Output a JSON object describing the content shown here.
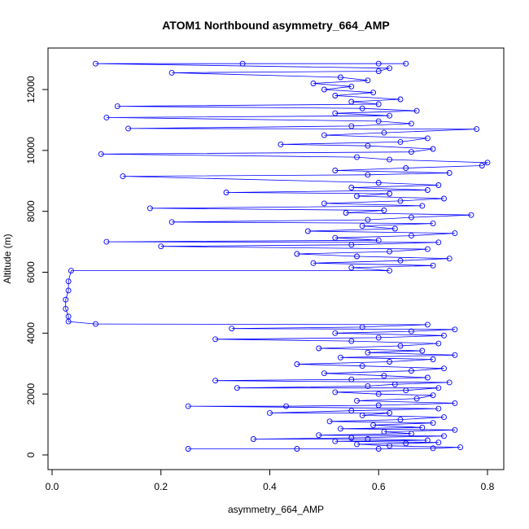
{
  "chart_data": {
    "type": "line",
    "title": "ATOM1 Northbound asymmetry_664_AMP",
    "xlabel": "asymmetry_664_AMP",
    "ylabel": "Altitude (m)",
    "xlim": [
      0.0,
      0.8
    ],
    "ylim": [
      0,
      12000
    ],
    "xticks": [
      0.0,
      0.2,
      0.4,
      0.6,
      0.8
    ],
    "xtick_labels": [
      "0.0",
      "0.2",
      "0.4",
      "0.6",
      "0.8"
    ],
    "yticks": [
      0,
      2000,
      4000,
      6000,
      8000,
      10000,
      12000
    ],
    "ytick_labels": [
      "0",
      "2000",
      "4000",
      "6000",
      "8000",
      "10000",
      "12000"
    ],
    "grid": false,
    "color": "#0000ff",
    "marker": "open-circle",
    "series": [
      {
        "name": "asymmetry_664_AMP",
        "points": [
          [
            0.25,
            200
          ],
          [
            0.45,
            200
          ],
          [
            0.6,
            200
          ],
          [
            0.7,
            220
          ],
          [
            0.75,
            250
          ],
          [
            0.62,
            300
          ],
          [
            0.56,
            350
          ],
          [
            0.65,
            380
          ],
          [
            0.71,
            410
          ],
          [
            0.52,
            450
          ],
          [
            0.69,
            480
          ],
          [
            0.58,
            520
          ],
          [
            0.37,
            520
          ],
          [
            0.55,
            560
          ],
          [
            0.72,
            620
          ],
          [
            0.49,
            650
          ],
          [
            0.66,
            700
          ],
          [
            0.61,
            760
          ],
          [
            0.74,
            820
          ],
          [
            0.53,
            860
          ],
          [
            0.68,
            900
          ],
          [
            0.59,
            980
          ],
          [
            0.7,
            1050
          ],
          [
            0.51,
            1100
          ],
          [
            0.64,
            1160
          ],
          [
            0.72,
            1240
          ],
          [
            0.57,
            1300
          ],
          [
            0.62,
            1380
          ],
          [
            0.4,
            1380
          ],
          [
            0.55,
            1450
          ],
          [
            0.71,
            1520
          ],
          [
            0.25,
            1600
          ],
          [
            0.43,
            1600
          ],
          [
            0.6,
            1630
          ],
          [
            0.74,
            1700
          ],
          [
            0.56,
            1780
          ],
          [
            0.67,
            1850
          ],
          [
            0.7,
            1960
          ],
          [
            0.6,
            2000
          ],
          [
            0.52,
            2060
          ],
          [
            0.65,
            2120
          ],
          [
            0.71,
            2200
          ],
          [
            0.34,
            2200
          ],
          [
            0.58,
            2260
          ],
          [
            0.63,
            2320
          ],
          [
            0.73,
            2380
          ],
          [
            0.3,
            2440
          ],
          [
            0.55,
            2480
          ],
          [
            0.69,
            2540
          ],
          [
            0.61,
            2600
          ],
          [
            0.5,
            2680
          ],
          [
            0.66,
            2760
          ],
          [
            0.72,
            2840
          ],
          [
            0.57,
            2920
          ],
          [
            0.45,
            2980
          ],
          [
            0.62,
            3060
          ],
          [
            0.7,
            3140
          ],
          [
            0.53,
            3200
          ],
          [
            0.74,
            3280
          ],
          [
            0.58,
            3360
          ],
          [
            0.68,
            3420
          ],
          [
            0.49,
            3500
          ],
          [
            0.64,
            3580
          ],
          [
            0.71,
            3660
          ],
          [
            0.55,
            3740
          ],
          [
            0.3,
            3800
          ],
          [
            0.6,
            3850
          ],
          [
            0.72,
            3920
          ],
          [
            0.52,
            4000
          ],
          [
            0.66,
            4060
          ],
          [
            0.74,
            4120
          ],
          [
            0.33,
            4150
          ],
          [
            0.57,
            4200
          ],
          [
            0.69,
            4280
          ],
          [
            0.08,
            4300
          ],
          [
            0.03,
            4380
          ],
          [
            0.03,
            4550
          ],
          [
            0.025,
            4800
          ],
          [
            0.025,
            5100
          ],
          [
            0.03,
            5400
          ],
          [
            0.03,
            5700
          ],
          [
            0.035,
            6050
          ],
          [
            0.62,
            6050
          ],
          [
            0.55,
            6150
          ],
          [
            0.7,
            6220
          ],
          [
            0.48,
            6300
          ],
          [
            0.64,
            6380
          ],
          [
            0.73,
            6450
          ],
          [
            0.56,
            6520
          ],
          [
            0.45,
            6600
          ],
          [
            0.62,
            6680
          ],
          [
            0.69,
            6760
          ],
          [
            0.2,
            6850
          ],
          [
            0.55,
            6900
          ],
          [
            0.71,
            6980
          ],
          [
            0.1,
            7000
          ],
          [
            0.6,
            7050
          ],
          [
            0.52,
            7130
          ],
          [
            0.66,
            7200
          ],
          [
            0.74,
            7280
          ],
          [
            0.47,
            7350
          ],
          [
            0.63,
            7430
          ],
          [
            0.57,
            7520
          ],
          [
            0.7,
            7600
          ],
          [
            0.22,
            7650
          ],
          [
            0.58,
            7720
          ],
          [
            0.66,
            7800
          ],
          [
            0.77,
            7880
          ],
          [
            0.54,
            7950
          ],
          [
            0.61,
            8030
          ],
          [
            0.18,
            8100
          ],
          [
            0.68,
            8180
          ],
          [
            0.5,
            8260
          ],
          [
            0.64,
            8340
          ],
          [
            0.72,
            8420
          ],
          [
            0.56,
            8500
          ],
          [
            0.62,
            8580
          ],
          [
            0.32,
            8620
          ],
          [
            0.69,
            8700
          ],
          [
            0.55,
            8780
          ],
          [
            0.71,
            8860
          ],
          [
            0.6,
            8940
          ],
          [
            0.13,
            9150
          ],
          [
            0.58,
            9200
          ],
          [
            0.73,
            9260
          ],
          [
            0.52,
            9340
          ],
          [
            0.65,
            9420
          ],
          [
            0.79,
            9500
          ],
          [
            0.8,
            9600
          ],
          [
            0.62,
            9700
          ],
          [
            0.56,
            9780
          ],
          [
            0.09,
            9880
          ],
          [
            0.66,
            9950
          ],
          [
            0.7,
            10050
          ],
          [
            0.58,
            10150
          ],
          [
            0.42,
            10200
          ],
          [
            0.64,
            10280
          ],
          [
            0.69,
            10400
          ],
          [
            0.5,
            10500
          ],
          [
            0.61,
            10580
          ],
          [
            0.78,
            10700
          ],
          [
            0.14,
            10720
          ],
          [
            0.55,
            10800
          ],
          [
            0.66,
            10880
          ],
          [
            0.6,
            10960
          ],
          [
            0.1,
            11080
          ],
          [
            0.62,
            11140
          ],
          [
            0.52,
            11220
          ],
          [
            0.67,
            11300
          ],
          [
            0.57,
            11380
          ],
          [
            0.12,
            11450
          ],
          [
            0.6,
            11520
          ],
          [
            0.55,
            11600
          ],
          [
            0.64,
            11680
          ],
          [
            0.52,
            11800
          ],
          [
            0.59,
            11900
          ],
          [
            0.5,
            12000
          ],
          [
            0.55,
            12100
          ],
          [
            0.48,
            12200
          ],
          [
            0.58,
            12300
          ],
          [
            0.53,
            12400
          ],
          [
            0.22,
            12550
          ],
          [
            0.6,
            12600
          ],
          [
            0.62,
            12700
          ],
          [
            0.08,
            12850
          ],
          [
            0.35,
            12850
          ],
          [
            0.6,
            12850
          ],
          [
            0.65,
            12850
          ]
        ]
      }
    ]
  }
}
